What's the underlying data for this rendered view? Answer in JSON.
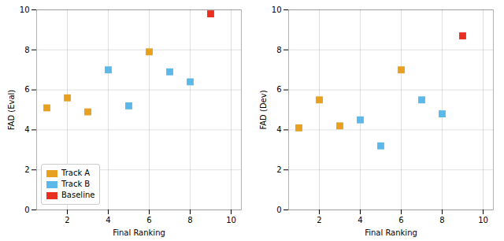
{
  "chart_data": [
    {
      "type": "scatter",
      "xlabel": "Final Ranking",
      "ylabel": "FAD (Eval)",
      "xlim": [
        0.5,
        10.5
      ],
      "ylim": [
        0,
        10
      ],
      "xticks": [
        2,
        4,
        6,
        8,
        10
      ],
      "yticks": [
        0,
        2,
        4,
        6,
        8,
        10
      ],
      "grid": true,
      "legend": "lower left",
      "marker": "square",
      "series": [
        {
          "name": "Track A",
          "color": "#E8A020",
          "x": [
            1,
            2,
            3,
            6
          ],
          "values": [
            5.1,
            5.6,
            4.9,
            7.9
          ]
        },
        {
          "name": "Track B",
          "color": "#5BB8E8",
          "x": [
            4,
            5,
            7,
            8
          ],
          "values": [
            7.0,
            5.2,
            6.9,
            6.4
          ]
        },
        {
          "name": "Baseline",
          "color": "#E83020",
          "x": [
            9
          ],
          "values": [
            9.8
          ]
        }
      ]
    },
    {
      "type": "scatter",
      "xlabel": "Final Ranking",
      "ylabel": "FAD (Dev)",
      "xlim": [
        0.5,
        10.5
      ],
      "ylim": [
        0,
        10
      ],
      "xticks": [
        2,
        4,
        6,
        8,
        10
      ],
      "yticks": [
        0,
        2,
        4,
        6,
        8,
        10
      ],
      "grid": true,
      "marker": "square",
      "series": [
        {
          "name": "Track A",
          "color": "#E8A020",
          "x": [
            1,
            2,
            3,
            6
          ],
          "values": [
            4.1,
            5.5,
            4.2,
            7.0
          ]
        },
        {
          "name": "Track B",
          "color": "#5BB8E8",
          "x": [
            4,
            5,
            7,
            8
          ],
          "values": [
            4.5,
            3.2,
            5.5,
            4.8
          ]
        },
        {
          "name": "Baseline",
          "color": "#E83020",
          "x": [
            9
          ],
          "values": [
            8.7
          ]
        }
      ]
    }
  ]
}
